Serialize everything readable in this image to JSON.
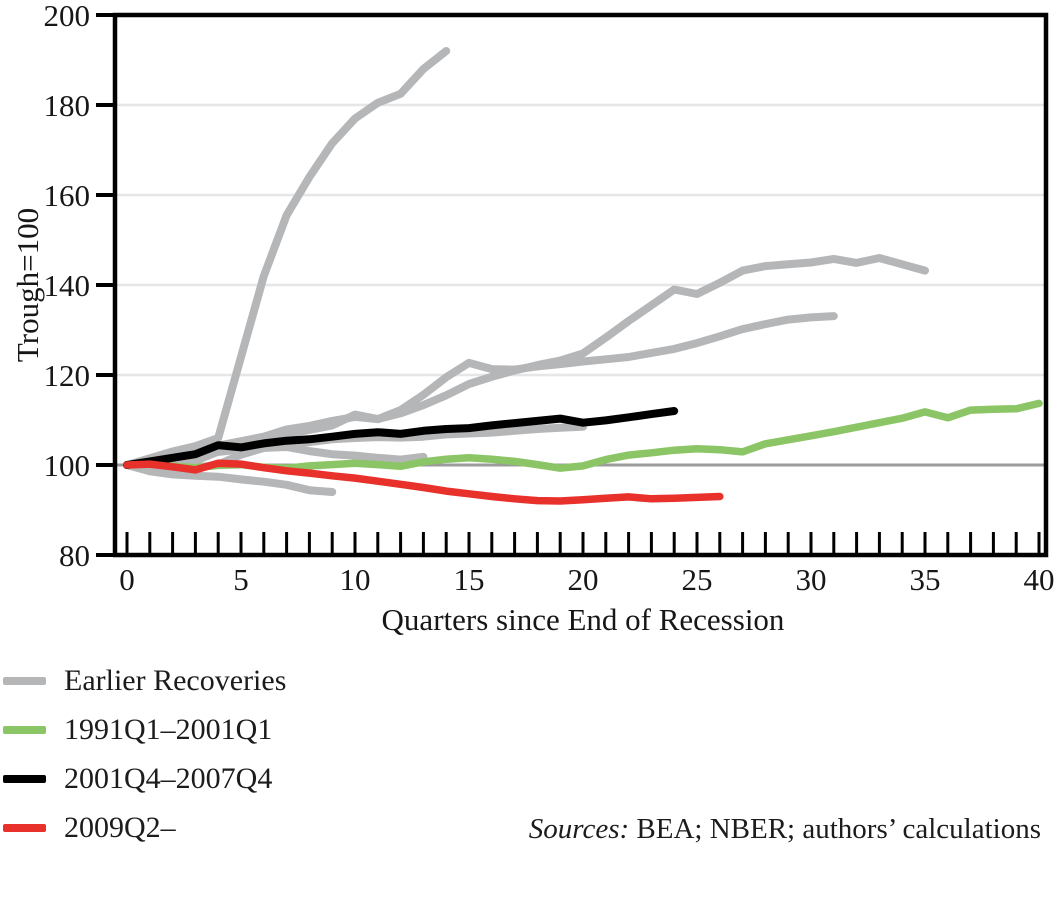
{
  "chart_data": {
    "type": "line",
    "xlabel": "Quarters since End of Recession",
    "ylabel": "Trough=100",
    "xlim": [
      0,
      40
    ],
    "ylim": [
      80,
      200
    ],
    "x_ticks_labeled": [
      0,
      5,
      10,
      15,
      20,
      25,
      30,
      35,
      40
    ],
    "x_minor_tick_every": 1,
    "y_ticks": [
      80,
      100,
      120,
      140,
      160,
      180,
      200
    ],
    "gridlines_y": [
      120,
      140,
      160,
      180
    ],
    "reference_line_y": 100,
    "grid": "horizontal-only",
    "legend_position": "below-left",
    "series": [
      {
        "name": "Earlier Recoveries",
        "color": "#b5b6b8",
        "width": 8,
        "values": [
          100,
          101.5,
          103,
          104.2,
          106,
          124,
          142,
          155.5,
          164,
          171.5,
          177,
          180.5,
          182.5,
          188,
          192
        ]
      },
      {
        "name": "Earlier Recoveries",
        "color": "#b5b6b8",
        "width": 8,
        "values": [
          100,
          100.8,
          101.5,
          102.5,
          104.3,
          105.3,
          106.3,
          107.9,
          108.7,
          109.8,
          110.7,
          110.2,
          111.5,
          113.3,
          115.5,
          118,
          119.6,
          121,
          122.2,
          123.2,
          124.8,
          128.3,
          132,
          135.5,
          139,
          138,
          140.5,
          143.2,
          144.2,
          144.6,
          145,
          145.8,
          144.9,
          146,
          144.6,
          143.2
        ]
      },
      {
        "name": "Earlier Recoveries",
        "color": "#b5b6b8",
        "width": 8,
        "values": [
          100,
          99.8,
          100.3,
          100.9,
          103,
          104.8,
          105.8,
          106.9,
          107.8,
          108.8,
          111.2,
          110.2,
          112.2,
          115.6,
          119.5,
          122.7,
          121.3,
          121.2,
          121.9,
          122.4,
          123,
          123.5,
          124,
          124.9,
          125.8,
          127.1,
          128.6,
          130.2,
          131.3,
          132.3,
          132.8,
          133.1
        ]
      },
      {
        "name": "Earlier Recoveries",
        "color": "#b5b6b8",
        "width": 8,
        "values": [
          100,
          99.6,
          99.1,
          99.4,
          100.1,
          102.3,
          103.8,
          104,
          103.1,
          102.4,
          102.1,
          101.6,
          101.2,
          101.8
        ]
      },
      {
        "name": "Earlier Recoveries",
        "color": "#b5b6b8",
        "width": 8,
        "values": [
          100,
          100.3,
          100.9,
          101.6,
          102.9,
          103.4,
          104.1,
          104.7,
          105.1,
          105.7,
          106,
          106.2,
          106.1,
          106.3,
          106.8,
          107,
          107.2,
          107.6,
          108,
          108.3,
          108.5
        ]
      },
      {
        "name": "Earlier Recoveries",
        "color": "#b5b6b8",
        "width": 8,
        "values": [
          100,
          98.6,
          97.9,
          97.6,
          97.4,
          96.8,
          96.3,
          95.6,
          94.4,
          94
        ]
      },
      {
        "name": "1991Q1–2001Q1",
        "color": "#8bc565",
        "width": 7.5,
        "values": [
          100,
          100.2,
          99.7,
          99.4,
          99.9,
          100.1,
          99.5,
          99.3,
          99.8,
          100.1,
          100.4,
          100.1,
          99.7,
          100.7,
          101.3,
          101.6,
          101.3,
          100.8,
          100.1,
          99.3,
          99.8,
          101.2,
          102.2,
          102.7,
          103.3,
          103.6,
          103.4,
          102.9,
          104.7,
          105.6,
          106.5,
          107.4,
          108.4,
          109.4,
          110.4,
          111.8,
          110.5,
          112.2,
          112.4,
          112.5,
          113.7
        ]
      },
      {
        "name": "2001Q4–2007Q4",
        "color": "#000000",
        "width": 8,
        "values": [
          100,
          100.8,
          101.6,
          102.4,
          104.4,
          103.9,
          104.8,
          105.4,
          105.7,
          106.3,
          106.9,
          107.3,
          106.9,
          107.6,
          108,
          108.2,
          108.8,
          109.3,
          109.8,
          110.3,
          109.4,
          109.9,
          110.6,
          111.3,
          112
        ]
      },
      {
        "name": "2009Q2–",
        "color": "#e8312b",
        "width": 7.5,
        "values": [
          100,
          100.2,
          99.6,
          98.9,
          100.4,
          100.2,
          99.4,
          98.7,
          98.2,
          97.6,
          97.1,
          96.4,
          95.7,
          95,
          94.2,
          93.6,
          93,
          92.5,
          92.1,
          92,
          92.3,
          92.6,
          92.9,
          92.5,
          92.6,
          92.8,
          93
        ]
      }
    ],
    "legend": [
      {
        "label": "Earlier Recoveries",
        "color": "#b5b6b8"
      },
      {
        "label": "1991Q1–2001Q1",
        "color": "#8bc565"
      },
      {
        "label": "2001Q4–2007Q4",
        "color": "#000000"
      },
      {
        "label": "2009Q2–",
        "color": "#e8312b"
      }
    ]
  },
  "footer": {
    "sources_label": "Sources:",
    "sources_text": " BEA; NBER; authors’ calculations"
  }
}
